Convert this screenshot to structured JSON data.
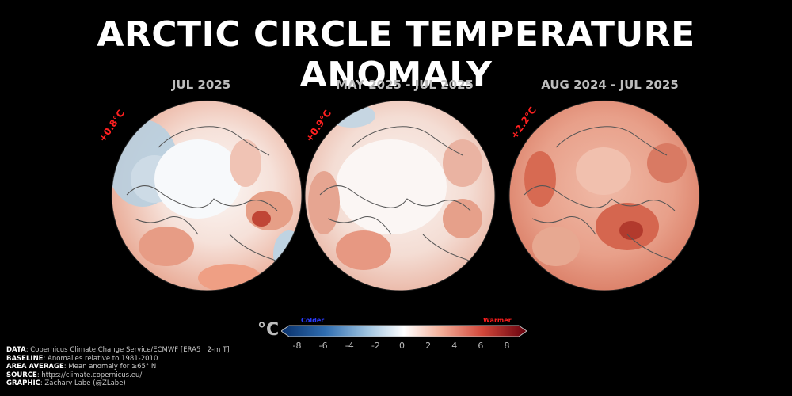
{
  "title": "ARCTIC CIRCLE TEMPERATURE ANOMALY",
  "panels": [
    {
      "period": "JUL 2025",
      "anomaly": "+0.8°C"
    },
    {
      "period": "MAY 2025 - JUL 2025",
      "anomaly": "+0.9°C"
    },
    {
      "period": "AUG 2024 - JUL 2025",
      "anomaly": "+2.2°C"
    }
  ],
  "colorbar": {
    "unit": "°C",
    "colder_label": "Colder",
    "warmer_label": "Warmer",
    "ticks": [
      "-8",
      "-6",
      "-4",
      "-2",
      "0",
      "2",
      "4",
      "6",
      "8"
    ],
    "range": [
      -8,
      8
    ],
    "colors": {
      "cold_end": "#08306b",
      "neutral": "#ffffff",
      "warm_end": "#67000d"
    }
  },
  "credits": [
    {
      "label": "DATA",
      "text": ": Copernicus Climate Change Service/ECMWF [ERA5 : 2-m T]"
    },
    {
      "label": "BASELINE",
      "text": ": Anomalies relative to 1981-2010"
    },
    {
      "label": "AREA AVERAGE",
      "text": ": Mean anomaly for ≥65° N"
    },
    {
      "label": "SOURCE",
      "text": ": https://climate.copernicus.eu/"
    },
    {
      "label": "GRAPHIC",
      "text": ": Zachary Labe (@ZLabe)"
    }
  ]
}
